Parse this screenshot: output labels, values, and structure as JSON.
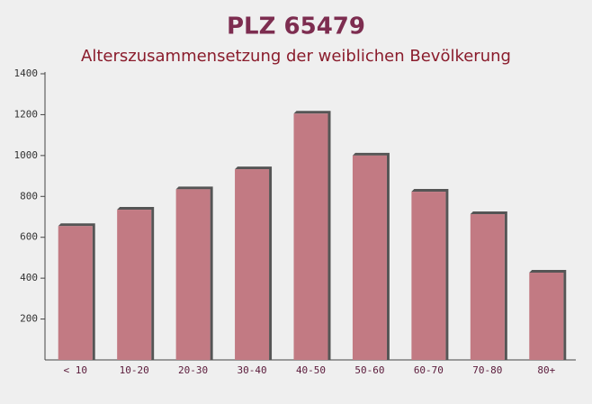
{
  "chart_data": {
    "type": "bar",
    "title": "PLZ 65479",
    "subtitle": "Alterszusammensetzung der weiblichen Bevölkerung",
    "categories": [
      "< 10",
      "10-20",
      "20-30",
      "30-40",
      "40-50",
      "50-60",
      "60-70",
      "70-80",
      "80+"
    ],
    "values": [
      655,
      735,
      835,
      933,
      1205,
      1000,
      823,
      713,
      427
    ],
    "color": "#c27a83",
    "ylim": [
      0,
      1400
    ],
    "yticks": [
      200,
      400,
      600,
      800,
      1000,
      1200,
      1400
    ]
  }
}
